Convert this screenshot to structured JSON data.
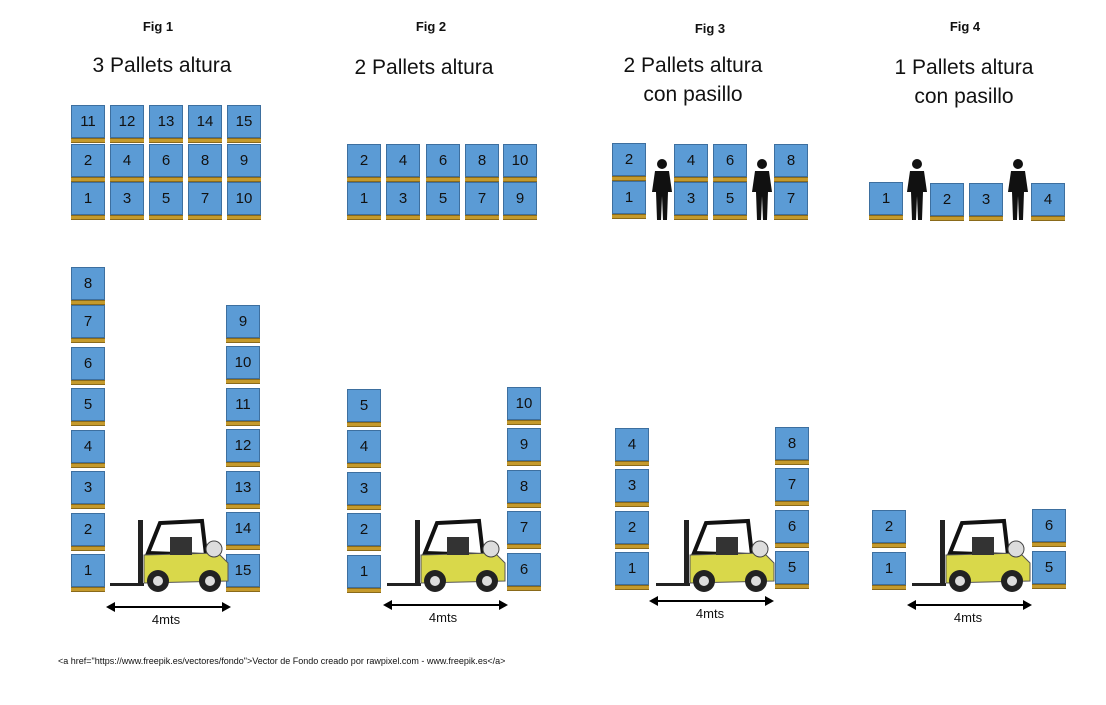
{
  "figures": [
    {
      "label": "Fig 1",
      "title": "3 Pallets altura",
      "top_view": [
        [
          "11",
          "12",
          "13",
          "14",
          "15"
        ],
        [
          "2",
          "4",
          "6",
          "8",
          "9"
        ],
        [
          "1",
          "3",
          "5",
          "7",
          "10"
        ]
      ],
      "left_stack": [
        "8",
        "7",
        "6",
        "5",
        "4",
        "3",
        "2",
        "1"
      ],
      "right_stack": [
        "9",
        "10",
        "11",
        "12",
        "13",
        "14",
        "15"
      ],
      "aisle_label": "4mts"
    },
    {
      "label": "Fig 2",
      "title": "2 Pallets altura",
      "top_view": [
        [
          "2",
          "4",
          "6",
          "8",
          "10"
        ],
        [
          "1",
          "3",
          "5",
          "7",
          "9"
        ]
      ],
      "left_stack": [
        "5",
        "4",
        "3",
        "2",
        "1"
      ],
      "right_stack": [
        "10",
        "9",
        "8",
        "7",
        "6"
      ],
      "aisle_label": "4mts"
    },
    {
      "label": "Fig 3",
      "title_line1": "2 Pallets altura",
      "title_line2": "con pasillo",
      "top_view_left": [
        "2",
        "1"
      ],
      "top_view_mid": [
        [
          "4",
          "6"
        ],
        [
          "3",
          "5"
        ]
      ],
      "top_view_right": [
        "8",
        "7"
      ],
      "left_stack": [
        "4",
        "3",
        "2",
        "1"
      ],
      "right_stack": [
        "8",
        "7",
        "6",
        "5"
      ],
      "aisle_label": "4mts"
    },
    {
      "label": "Fig 4",
      "title_line1": "1 Pallets altura",
      "title_line2": "con pasillo",
      "top_view": [
        "1",
        "2",
        "3",
        "4"
      ],
      "left_stack": [
        "2",
        "1"
      ],
      "right_stack": [
        "6",
        "5"
      ],
      "aisle_label": "4mts"
    }
  ],
  "credit": "<a href=\"https://www.freepik.es/vectores/fondo\">Vector de Fondo creado por rawpixel.com - www.freepik.es</a>",
  "colors": {
    "pallet_box": "#5b9bd5",
    "pallet_base": "#c59a2c",
    "forklift": "#d9d84a"
  },
  "icons": [
    "forklift-icon",
    "person-silhouette-icon",
    "double-arrow-icon"
  ]
}
